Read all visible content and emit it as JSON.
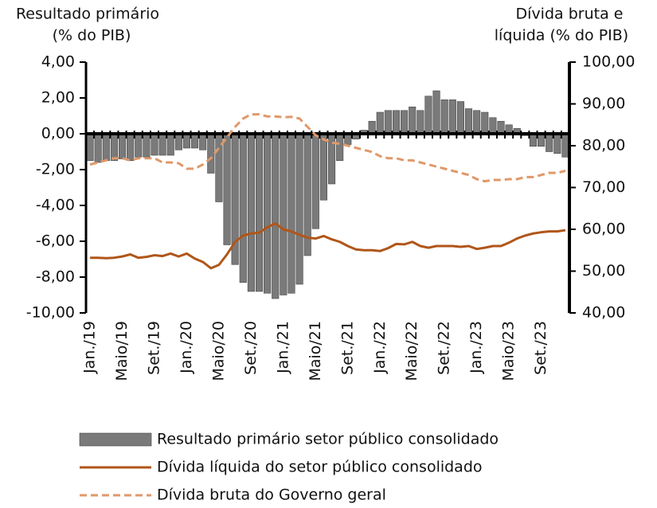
{
  "chart_data": {
    "type": "bar-line",
    "y_label": [
      "Resultado primário",
      "(% do PIB)"
    ],
    "y2_label": [
      "Dívida bruta e",
      "líquida  (% do PIB)"
    ],
    "categories": [
      "Jan./19",
      null,
      null,
      null,
      "Maio/19",
      null,
      null,
      null,
      "Set./19",
      null,
      null,
      null,
      "Jan./20",
      null,
      null,
      null,
      "Maio/20",
      null,
      null,
      null,
      "Set./20",
      null,
      null,
      null,
      "Jan./21",
      null,
      null,
      null,
      "Maio/21",
      null,
      null,
      null,
      "Set./21",
      null,
      null,
      null,
      "Jan./22",
      null,
      null,
      null,
      "Maio/22",
      null,
      null,
      null,
      "Set./22",
      null,
      null,
      null,
      "Jan./23",
      null,
      null,
      null,
      "Maio/23",
      null,
      null,
      null,
      "Set./23",
      null,
      null,
      null
    ],
    "ylim": [
      -10,
      4
    ],
    "yticks": [
      {
        "value": -10,
        "label": "-10,00"
      },
      {
        "value": -8,
        "label": "-8,00"
      },
      {
        "value": -6,
        "label": "-6,00"
      },
      {
        "value": -4,
        "label": "-4,00"
      },
      {
        "value": -2,
        "label": "-2,00"
      },
      {
        "value": 0,
        "label": "0,00"
      },
      {
        "value": 2,
        "label": "2,00"
      },
      {
        "value": 4,
        "label": "4,00"
      }
    ],
    "y2lim": [
      40,
      100
    ],
    "y2ticks": [
      {
        "value": 40,
        "label": "40,00"
      },
      {
        "value": 50,
        "label": "50,00"
      },
      {
        "value": 60,
        "label": "60,00"
      },
      {
        "value": 70,
        "label": "70,00"
      },
      {
        "value": 80,
        "label": "80,00"
      },
      {
        "value": 90,
        "label": "90,00"
      },
      {
        "value": 100,
        "label": "100,00"
      }
    ],
    "series": [
      {
        "name": "Resultado primário setor público consolidado",
        "type": "bar",
        "color": "#7a7a7a",
        "axis": "y",
        "values": [
          -1.5,
          -1.6,
          -1.5,
          -1.5,
          -1.4,
          -1.5,
          -1.3,
          -1.3,
          -1.2,
          -1.2,
          -1.2,
          -0.9,
          -0.8,
          -0.8,
          -0.9,
          -2.2,
          -3.8,
          -6.2,
          -7.3,
          -8.3,
          -8.8,
          -8.8,
          -8.9,
          -9.2,
          -9.0,
          -8.9,
          -8.4,
          -6.8,
          -5.3,
          -3.7,
          -2.8,
          -1.5,
          -0.6,
          -0.3,
          0.2,
          0.7,
          1.2,
          1.3,
          1.3,
          1.3,
          1.5,
          1.3,
          2.1,
          2.4,
          1.9,
          1.9,
          1.8,
          1.4,
          1.3,
          1.2,
          0.9,
          0.7,
          0.5,
          0.3,
          -0.1,
          -0.7,
          -0.7,
          -1.0,
          -1.1,
          -1.3
        ]
      },
      {
        "name": "Dívida líquida do setor público consolidado",
        "type": "line",
        "color": "#b0561a",
        "axis": "y2",
        "values": [
          53.2,
          53.2,
          53.1,
          53.2,
          53.5,
          54.0,
          53.2,
          53.4,
          53.8,
          53.6,
          54.2,
          53.5,
          54.2,
          53.0,
          52.2,
          50.7,
          51.5,
          54.0,
          57.0,
          58.5,
          59.0,
          59.2,
          60.5,
          61.4,
          60.0,
          59.5,
          58.7,
          58.0,
          57.8,
          58.4,
          57.6,
          57.0,
          56.0,
          55.2,
          55.0,
          55.0,
          54.8,
          55.5,
          56.5,
          56.4,
          57.0,
          56.0,
          55.6,
          56.0,
          56.0,
          56.0,
          55.8,
          56.0,
          55.3,
          55.6,
          56.0,
          56.0,
          56.8,
          57.8,
          58.5,
          59.0,
          59.3,
          59.5,
          59.5,
          59.8
        ]
      },
      {
        "name": "Dívida bruta do Governo geral",
        "type": "dashed-line",
        "color": "#e0996a",
        "axis": "y2",
        "values": [
          75.5,
          76.0,
          76.5,
          77.0,
          77.0,
          76.5,
          77.0,
          77.0,
          77.0,
          76.0,
          76.0,
          75.8,
          74.5,
          74.5,
          75.5,
          77.0,
          79.5,
          82.0,
          84.5,
          86.5,
          87.5,
          87.5,
          87.0,
          87.0,
          86.8,
          86.9,
          86.5,
          84.5,
          82.5,
          81.5,
          80.7,
          80.5,
          80.0,
          79.5,
          79.0,
          78.5,
          77.5,
          77.0,
          77.0,
          76.5,
          76.5,
          76.0,
          75.5,
          75.0,
          74.5,
          74.0,
          73.5,
          73.0,
          72.0,
          71.5,
          71.8,
          71.8,
          72.0,
          72.0,
          72.5,
          72.5,
          73.0,
          73.5,
          73.5,
          74.0
        ]
      }
    ]
  }
}
